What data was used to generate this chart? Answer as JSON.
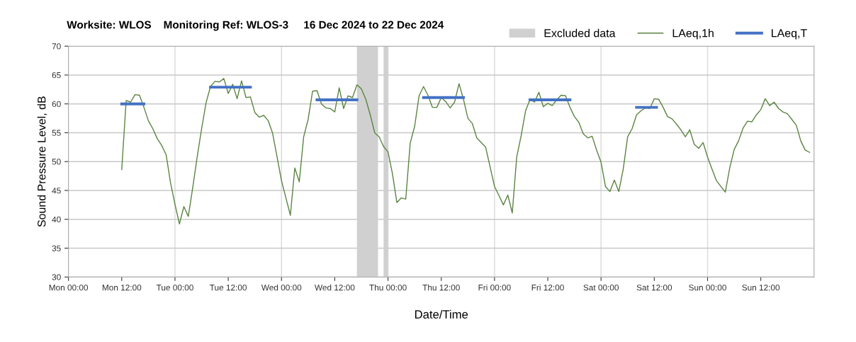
{
  "chart_data": {
    "type": "line",
    "title": "Worksite: WLOS    Monitoring Ref: WLOS-3     16 Dec 2024 to 22 Dec 2024",
    "xlabel": "Date/Time",
    "ylabel": "Sound Pressure Level, dB",
    "xlim": [
      "2024-12-16T00:00",
      "2024-12-23T00:00"
    ],
    "ylim": [
      30,
      70
    ],
    "xticks": [
      {
        "value": "2024-12-16T00:00",
        "label": "Mon 00:00"
      },
      {
        "value": "2024-12-16T12:00",
        "label": "Mon 12:00"
      },
      {
        "value": "2024-12-17T00:00",
        "label": "Tue 00:00"
      },
      {
        "value": "2024-12-17T12:00",
        "label": "Tue 12:00"
      },
      {
        "value": "2024-12-18T00:00",
        "label": "Wed 00:00"
      },
      {
        "value": "2024-12-18T12:00",
        "label": "Wed 12:00"
      },
      {
        "value": "2024-12-19T00:00",
        "label": "Thu 00:00"
      },
      {
        "value": "2024-12-19T12:00",
        "label": "Thu 12:00"
      },
      {
        "value": "2024-12-20T00:00",
        "label": "Fri 00:00"
      },
      {
        "value": "2024-12-20T12:00",
        "label": "Fri 12:00"
      },
      {
        "value": "2024-12-21T00:00",
        "label": "Sat 00:00"
      },
      {
        "value": "2024-12-21T12:00",
        "label": "Sat 12:00"
      },
      {
        "value": "2024-12-22T00:00",
        "label": "Sun 00:00"
      },
      {
        "value": "2024-12-22T12:00",
        "label": "Sun 12:00"
      }
    ],
    "yticks": [
      30,
      35,
      40,
      45,
      50,
      55,
      60,
      65,
      70
    ],
    "grid": "y",
    "legend": "top right",
    "bands": [
      {
        "axis": "x",
        "from": "2024-12-18T17:00",
        "to": "2024-12-18T21:45",
        "label": "Excluded data",
        "color": "#d0d0d0"
      },
      {
        "axis": "x",
        "from": "2024-12-18T23:00",
        "to": "2024-12-19T00:00",
        "color": "#d0d0d0"
      }
    ],
    "ref_lines": [
      {
        "axis": "x",
        "value": "2024-12-17T00:00",
        "color": "#d9d9d9"
      },
      {
        "axis": "x",
        "value": "2024-12-18T00:00",
        "color": "#d9d9d9"
      },
      {
        "axis": "x",
        "value": "2024-12-19T00:00",
        "color": "#d9d9d9"
      },
      {
        "axis": "x",
        "value": "2024-12-20T00:00",
        "color": "#d9d9d9"
      },
      {
        "axis": "x",
        "value": "2024-12-21T00:00",
        "color": "#d9d9d9"
      },
      {
        "axis": "x",
        "value": "2024-12-22T00:00",
        "color": "#d9d9d9"
      }
    ],
    "series": [
      {
        "name": "LAeq,1h",
        "color": "#5a8440",
        "x": [
          "2024-12-16T12:00",
          "2024-12-16T13:00",
          "2024-12-16T14:00",
          "2024-12-16T15:00",
          "2024-12-16T16:00",
          "2024-12-16T17:00",
          "2024-12-16T18:00",
          "2024-12-16T19:00",
          "2024-12-16T20:00",
          "2024-12-16T21:00",
          "2024-12-16T22:00",
          "2024-12-16T23:00",
          "2024-12-17T00:00",
          "2024-12-17T01:00",
          "2024-12-17T02:00",
          "2024-12-17T03:00",
          "2024-12-17T04:00",
          "2024-12-17T05:00",
          "2024-12-17T06:00",
          "2024-12-17T07:00",
          "2024-12-17T08:00",
          "2024-12-17T09:00",
          "2024-12-17T10:00",
          "2024-12-17T11:00",
          "2024-12-17T12:00",
          "2024-12-17T13:00",
          "2024-12-17T14:00",
          "2024-12-17T15:00",
          "2024-12-17T16:00",
          "2024-12-17T17:00",
          "2024-12-17T18:00",
          "2024-12-17T19:00",
          "2024-12-17T20:00",
          "2024-12-17T21:00",
          "2024-12-17T22:00",
          "2024-12-17T23:00",
          "2024-12-18T00:00",
          "2024-12-18T01:00",
          "2024-12-18T02:00",
          "2024-12-18T03:00",
          "2024-12-18T04:00",
          "2024-12-18T05:00",
          "2024-12-18T06:00",
          "2024-12-18T07:00",
          "2024-12-18T08:00",
          "2024-12-18T09:00",
          "2024-12-18T10:00",
          "2024-12-18T11:00",
          "2024-12-18T12:00",
          "2024-12-18T13:00",
          "2024-12-18T14:00",
          "2024-12-18T15:00",
          "2024-12-18T16:00",
          "2024-12-18T17:00",
          "2024-12-18T18:00",
          "2024-12-18T19:00",
          "2024-12-18T20:00",
          "2024-12-18T21:00",
          "2024-12-18T22:00",
          "2024-12-18T23:00",
          "2024-12-19T00:00",
          "2024-12-19T01:00",
          "2024-12-19T02:00",
          "2024-12-19T03:00",
          "2024-12-19T04:00",
          "2024-12-19T05:00",
          "2024-12-19T06:00",
          "2024-12-19T07:00",
          "2024-12-19T08:00",
          "2024-12-19T09:00",
          "2024-12-19T10:00",
          "2024-12-19T11:00",
          "2024-12-19T12:00",
          "2024-12-19T13:00",
          "2024-12-19T14:00",
          "2024-12-19T15:00",
          "2024-12-19T16:00",
          "2024-12-19T17:00",
          "2024-12-19T18:00",
          "2024-12-19T19:00",
          "2024-12-19T20:00",
          "2024-12-19T21:00",
          "2024-12-19T22:00",
          "2024-12-19T23:00",
          "2024-12-20T00:00",
          "2024-12-20T01:00",
          "2024-12-20T02:00",
          "2024-12-20T03:00",
          "2024-12-20T04:00",
          "2024-12-20T05:00",
          "2024-12-20T06:00",
          "2024-12-20T07:00",
          "2024-12-20T08:00",
          "2024-12-20T09:00",
          "2024-12-20T10:00",
          "2024-12-20T11:00",
          "2024-12-20T12:00",
          "2024-12-20T13:00",
          "2024-12-20T14:00",
          "2024-12-20T15:00",
          "2024-12-20T16:00",
          "2024-12-20T17:00",
          "2024-12-20T18:00",
          "2024-12-20T19:00",
          "2024-12-20T20:00",
          "2024-12-20T21:00",
          "2024-12-20T22:00",
          "2024-12-20T23:00",
          "2024-12-21T00:00",
          "2024-12-21T01:00",
          "2024-12-21T02:00",
          "2024-12-21T03:00",
          "2024-12-21T04:00",
          "2024-12-21T05:00",
          "2024-12-21T06:00",
          "2024-12-21T07:00",
          "2024-12-21T08:00",
          "2024-12-21T09:00",
          "2024-12-21T10:00",
          "2024-12-21T11:00",
          "2024-12-21T12:00",
          "2024-12-21T13:00",
          "2024-12-21T14:00",
          "2024-12-21T15:00",
          "2024-12-21T16:00",
          "2024-12-21T17:00",
          "2024-12-21T18:00",
          "2024-12-21T19:00",
          "2024-12-21T20:00",
          "2024-12-21T21:00",
          "2024-12-21T22:00",
          "2024-12-21T23:00",
          "2024-12-22T00:00",
          "2024-12-22T01:00",
          "2024-12-22T02:00",
          "2024-12-22T04:00",
          "2024-12-22T05:00",
          "2024-12-22T06:00",
          "2024-12-22T07:00",
          "2024-12-22T08:00",
          "2024-12-22T09:00",
          "2024-12-22T10:00",
          "2024-12-22T11:00",
          "2024-12-22T12:00",
          "2024-12-22T13:00",
          "2024-12-22T14:00",
          "2024-12-22T15:00",
          "2024-12-22T16:00",
          "2024-12-22T17:00",
          "2024-12-22T18:00",
          "2024-12-22T19:00",
          "2024-12-22T20:00",
          "2024-12-22T21:00",
          "2024-12-22T22:00",
          "2024-12-22T23:00"
        ],
        "values": [
          48.6,
          60.6,
          60.3,
          61.6,
          61.5,
          59.4,
          57.1,
          55.7,
          54.0,
          52.8,
          51.2,
          46.3,
          42.6,
          39.2,
          42.2,
          40.5,
          45.5,
          50.8,
          55.7,
          60.2,
          63.0,
          63.9,
          63.8,
          64.4,
          61.8,
          63.4,
          60.9,
          64.0,
          61.1,
          61.2,
          58.5,
          57.7,
          58.0,
          57.1,
          54.9,
          50.8,
          46.7,
          43.7,
          40.7,
          48.9,
          46.5,
          54.3,
          57.3,
          62.2,
          62.3,
          60.0,
          59.3,
          59.2,
          58.6,
          62.8,
          59.2,
          61.4,
          61.1,
          63.3,
          62.6,
          60.8,
          58.1,
          55.0,
          54.3,
          52.6,
          51.7,
          47.9,
          42.9,
          43.7,
          43.5,
          53.2,
          56.1,
          61.4,
          63.0,
          61.5,
          59.4,
          59.4,
          61.1,
          60.4,
          59.3,
          60.3,
          63.5,
          60.8,
          57.5,
          56.6,
          54.1,
          53.3,
          52.5,
          49.1,
          45.7,
          44.1,
          42.5,
          44.2,
          41.1,
          50.8,
          54.5,
          58.8,
          60.8,
          60.3,
          62.0,
          59.5,
          60.1,
          59.7,
          60.7,
          61.5,
          61.4,
          59.4,
          57.8,
          56.8,
          54.8,
          54.1,
          54.4,
          52.0,
          49.9,
          45.7,
          44.8,
          46.8,
          44.8,
          48.7,
          54.3,
          55.7,
          58.1,
          58.8,
          59.3,
          59.2,
          60.9,
          60.8,
          59.4,
          57.8,
          57.4,
          56.5,
          55.5,
          54.3,
          55.5,
          53.0,
          52.3,
          53.3,
          50.8,
          48.7,
          46.7,
          44.7,
          48.9,
          52.1,
          53.6,
          55.8,
          57.0,
          56.9,
          58.1,
          59.0,
          60.9,
          59.7,
          60.3,
          59.2,
          58.6,
          58.3,
          57.3,
          56.3,
          53.6,
          52.0,
          51.6
        ]
      },
      {
        "name": "LAeq,T",
        "color": "#4472c4",
        "x": [
          "2024-12-16T12:00",
          "2024-12-16T17:00",
          null,
          "2024-12-17T08:00",
          "2024-12-17T17:00",
          null,
          "2024-12-18T08:00",
          "2024-12-18T17:00",
          null,
          "2024-12-19T08:00",
          "2024-12-19T17:00",
          null,
          "2024-12-20T08:00",
          "2024-12-20T17:00",
          null,
          "2024-12-21T08:00",
          "2024-12-21T12:30"
        ],
        "values": [
          60.0,
          60.0,
          null,
          62.9,
          62.9,
          null,
          60.7,
          60.7,
          null,
          61.1,
          61.1,
          null,
          60.7,
          60.7,
          null,
          59.4,
          59.4
        ]
      }
    ]
  }
}
